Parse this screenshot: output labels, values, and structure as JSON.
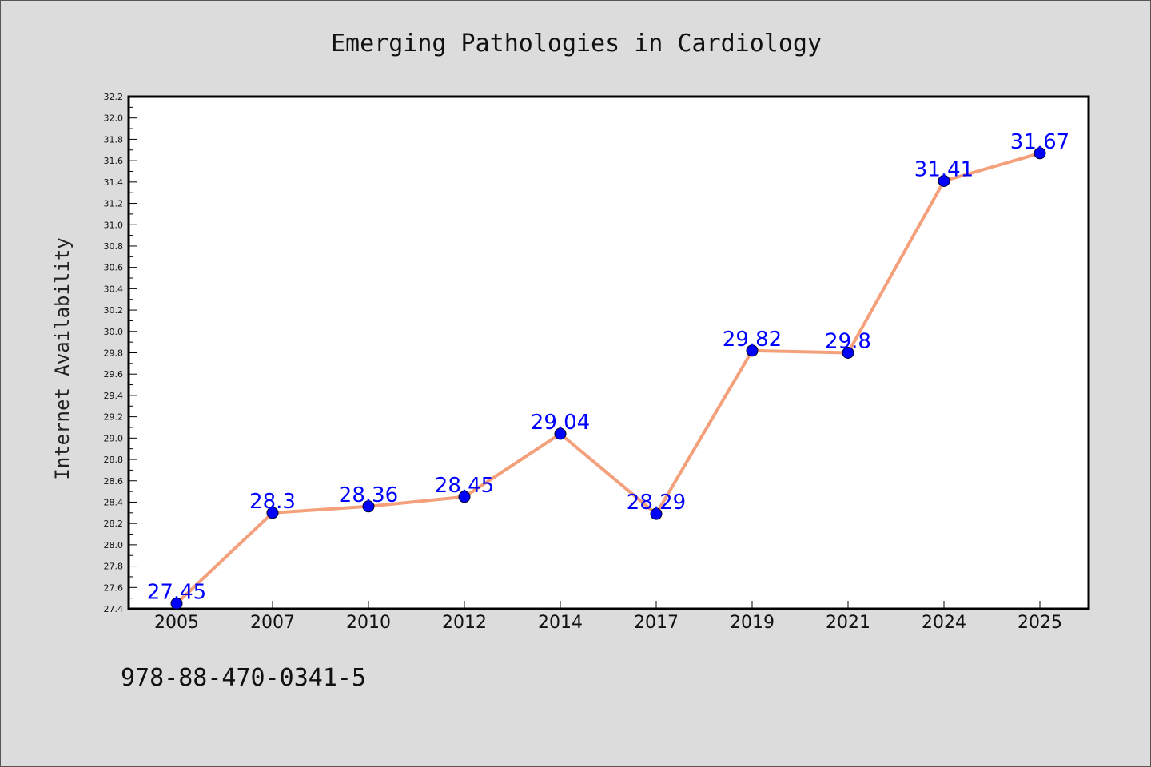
{
  "chart_data": {
    "type": "line",
    "title": "Emerging Pathologies in Cardiology",
    "ylabel": "Internet Availability",
    "xlabel": "",
    "categories": [
      "2005",
      "2007",
      "2010",
      "2012",
      "2014",
      "2017",
      "2019",
      "2021",
      "2024",
      "2025"
    ],
    "values": [
      27.45,
      28.3,
      28.36,
      28.45,
      29.04,
      28.29,
      29.82,
      29.8,
      31.41,
      31.67
    ],
    "data_labels": [
      "27.45",
      "28.3",
      "28.36",
      "28.45",
      "29.04",
      "28.29",
      "29.82",
      "29.8",
      "31.41",
      "31.67"
    ],
    "ylim": [
      27.4,
      32.2
    ],
    "yticks": [
      "27.4",
      "27.6",
      "27.8",
      "28.0",
      "28.2",
      "28.4",
      "28.6",
      "28.8",
      "29.0",
      "29.2",
      "29.4",
      "29.6",
      "29.8",
      "30.0",
      "30.2",
      "30.4",
      "30.6",
      "30.8",
      "31.0",
      "31.2",
      "31.4",
      "31.6",
      "31.8",
      "32.0",
      "32.2"
    ],
    "grid": false,
    "line_color": "#f4a07a",
    "marker_color": "#0000ff",
    "label_color": "#0000ff"
  },
  "footnote": "978-88-470-0341-5"
}
